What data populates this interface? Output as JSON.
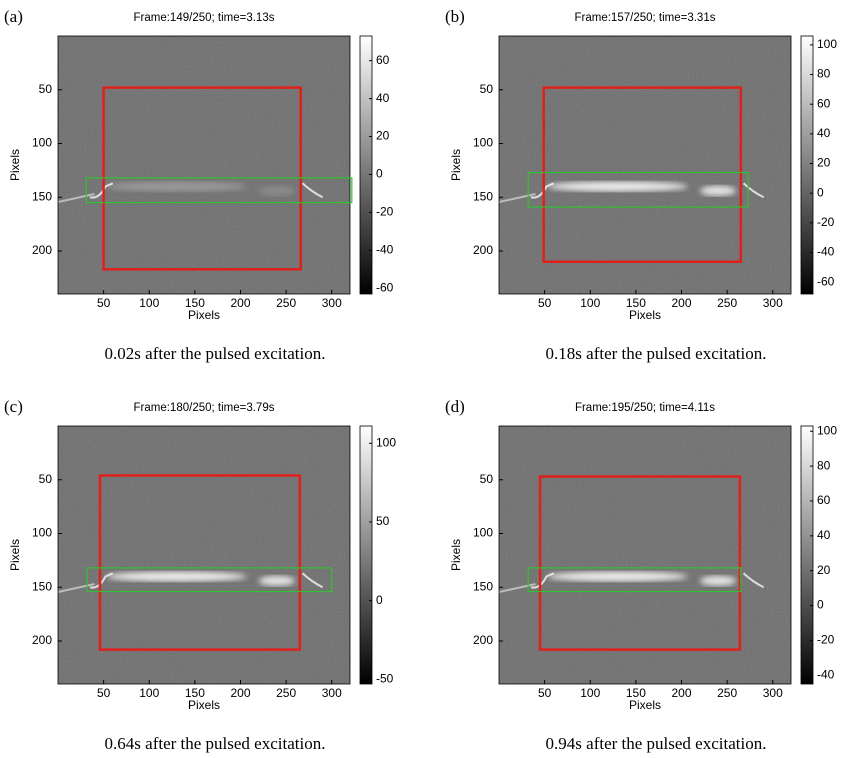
{
  "panels": [
    {
      "label": "(a)",
      "title": "Frame:149/250; time=3.13s",
      "xlabel": "Pixels",
      "ylabel": "Pixels",
      "xlim": [
        0,
        320
      ],
      "ylim": [
        0,
        240
      ],
      "y_reversed": true,
      "xticks": [
        50,
        100,
        150,
        200,
        250,
        300
      ],
      "yticks": [
        50,
        100,
        150,
        200
      ],
      "clim": [
        -63,
        73
      ],
      "cticks": [
        60,
        40,
        20,
        0,
        -20,
        -40,
        -60
      ],
      "red_box": [
        50,
        48,
        266,
        217
      ],
      "green_box": [
        31,
        132,
        322,
        155
      ],
      "caption": "0.02s after the pulsed excitation."
    },
    {
      "label": "(b)",
      "title": "Frame:157/250; time=3.31s",
      "xlabel": "Pixels",
      "ylabel": "Pixels",
      "xlim": [
        0,
        320
      ],
      "ylim": [
        0,
        240
      ],
      "y_reversed": true,
      "xticks": [
        50,
        100,
        150,
        200,
        250,
        300
      ],
      "yticks": [
        50,
        100,
        150,
        200
      ],
      "clim": [
        -68,
        106
      ],
      "cticks": [
        100,
        80,
        60,
        40,
        20,
        0,
        -20,
        -40,
        -60
      ],
      "red_box": [
        49,
        48,
        265,
        210
      ],
      "green_box": [
        32,
        127,
        273,
        159
      ],
      "caption": "0.18s after the pulsed excitation."
    },
    {
      "label": "(c)",
      "title": "Frame:180/250; time=3.79s",
      "xlabel": "Pixels",
      "ylabel": "Pixels",
      "xlim": [
        0,
        320
      ],
      "ylim": [
        0,
        240
      ],
      "y_reversed": true,
      "xticks": [
        50,
        100,
        150,
        200,
        250,
        300
      ],
      "yticks": [
        50,
        100,
        150,
        200
      ],
      "clim": [
        -53,
        111
      ],
      "cticks": [
        100,
        50,
        0,
        -50
      ],
      "red_box": [
        46,
        46,
        265,
        208
      ],
      "green_box": [
        32,
        132,
        300,
        154
      ],
      "caption": "0.64s after the pulsed excitation."
    },
    {
      "label": "(d)",
      "title": "Frame:195/250; time=4.11s",
      "xlabel": "Pixels",
      "ylabel": "Pixels",
      "xlim": [
        0,
        320
      ],
      "ylim": [
        0,
        240
      ],
      "y_reversed": true,
      "xticks": [
        50,
        100,
        150,
        200,
        250,
        300
      ],
      "yticks": [
        50,
        100,
        150,
        200
      ],
      "clim": [
        -45,
        103
      ],
      "cticks": [
        100,
        80,
        60,
        40,
        20,
        0,
        -20,
        -40
      ],
      "red_box": [
        45,
        47,
        264,
        208
      ],
      "green_box": [
        32,
        132,
        265,
        154
      ],
      "caption": "0.94s after the pulsed excitation."
    }
  ]
}
